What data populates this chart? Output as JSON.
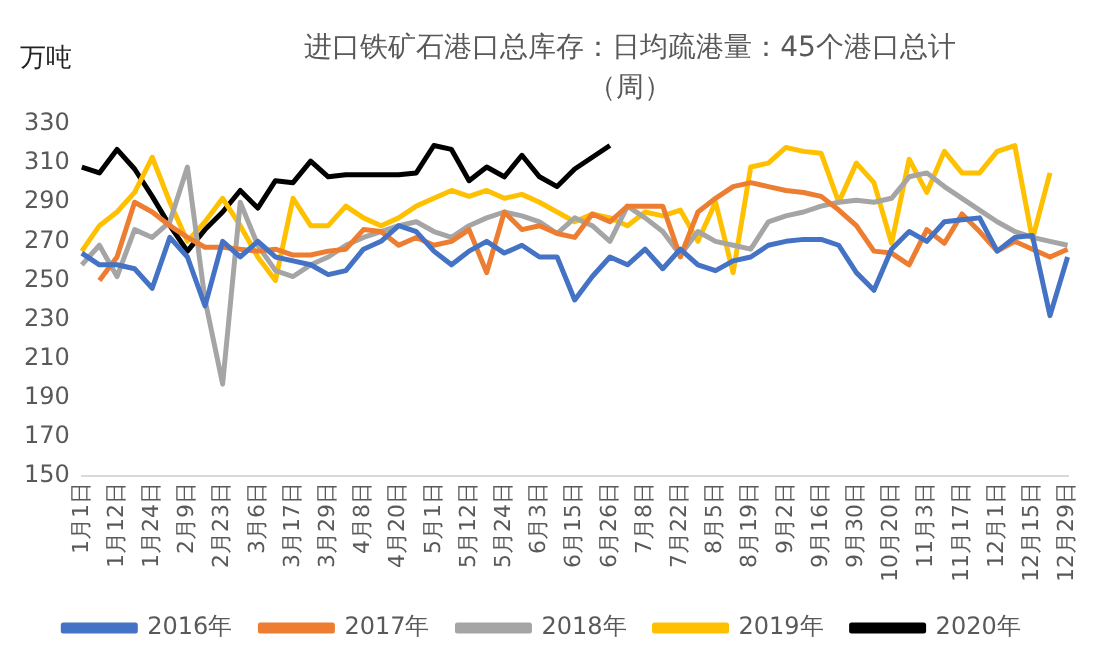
{
  "chart_data": {
    "type": "line",
    "title": "进口铁矿石港口总库存：日均疏港量：45个港口总计（周）",
    "ylabel": "万吨",
    "categories": [
      "1月1日",
      null,
      "1月12日",
      null,
      "1月24日",
      null,
      "2月9日",
      null,
      "2月23日",
      null,
      "3月6日",
      null,
      "3月17日",
      null,
      "3月29日",
      null,
      "4月8日",
      null,
      "4月20日",
      null,
      "5月1日",
      null,
      "5月12日",
      null,
      "5月24日",
      null,
      "6月3日",
      null,
      "6月15日",
      null,
      "6月26日",
      null,
      "7月8日",
      null,
      "7月22日",
      null,
      "8月5日",
      null,
      "8月19日",
      null,
      "9月2日",
      null,
      "9月16日",
      null,
      "9月30日",
      null,
      "10月20日",
      null,
      "11月3日",
      null,
      "11月17日",
      null,
      "12月1日",
      null,
      "12月15日",
      null,
      "12月29日"
    ],
    "ylim": [
      150,
      330
    ],
    "yticks": [
      150,
      170,
      190,
      210,
      230,
      250,
      270,
      290,
      310,
      330
    ],
    "grid": false,
    "legend": "bottom",
    "marker": "none",
    "line_style": "solid",
    "series": [
      {
        "name": "2016年",
        "color": "#4472c4",
        "values": [
          264,
          258,
          258,
          256,
          246,
          272,
          262,
          237,
          270,
          262,
          270,
          262,
          260,
          258,
          253,
          255,
          266,
          270,
          278,
          275,
          265,
          258,
          265,
          270,
          264,
          268,
          262,
          262,
          240,
          252,
          262,
          258,
          266,
          256,
          266,
          258,
          255,
          260,
          262,
          268,
          270,
          271,
          271,
          268,
          254,
          245,
          266,
          275,
          270,
          280,
          281,
          282,
          265,
          272,
          273,
          232,
          262
        ]
      },
      {
        "name": "2017年",
        "color": "#ed7d31",
        "values": [
          null,
          250,
          262,
          290,
          285,
          278,
          272,
          267,
          267,
          266,
          265,
          266,
          263,
          263,
          265,
          266,
          276,
          275,
          268,
          272,
          268,
          270,
          276,
          254,
          285,
          276,
          278,
          274,
          272,
          284,
          280,
          288,
          288,
          288,
          262,
          285,
          292,
          298,
          300,
          298,
          296,
          295,
          293,
          286,
          278,
          265,
          264,
          258,
          276,
          269,
          284,
          275,
          265,
          270,
          266,
          262,
          266
        ]
      },
      {
        "name": "2018年",
        "color": "#a5a5a5",
        "values": [
          258,
          268,
          252,
          276,
          272,
          280,
          308,
          240,
          197,
          290,
          268,
          255,
          252,
          258,
          262,
          268,
          272,
          275,
          278,
          280,
          275,
          272,
          278,
          282,
          285,
          283,
          280,
          274,
          282,
          278,
          270,
          288,
          282,
          275,
          263,
          275,
          270,
          268,
          266,
          280,
          283,
          285,
          288,
          290,
          291,
          290,
          292,
          303,
          305,
          298,
          292,
          286,
          280,
          275,
          272,
          270,
          268
        ]
      },
      {
        "name": "2019年",
        "color": "#ffc000",
        "values": [
          265,
          278,
          285,
          295,
          313,
          290,
          270,
          280,
          292,
          278,
          262,
          250,
          292,
          278,
          278,
          288,
          282,
          278,
          282,
          288,
          292,
          296,
          293,
          296,
          292,
          294,
          290,
          285,
          280,
          284,
          282,
          278,
          285,
          283,
          286,
          270,
          290,
          254,
          308,
          310,
          318,
          316,
          315,
          290,
          310,
          300,
          269,
          312,
          295,
          316,
          305,
          305,
          316,
          319,
          271,
          305,
          null
        ]
      },
      {
        "name": "2020年",
        "color": "#000000",
        "values": [
          308,
          305,
          317,
          307,
          293,
          278,
          265,
          276,
          285,
          296,
          287,
          301,
          300,
          311,
          303,
          304,
          304,
          304,
          304,
          305,
          319,
          317,
          301,
          308,
          303,
          314,
          303,
          298,
          307,
          313,
          319,
          null,
          null,
          null,
          null,
          null,
          null,
          null,
          null,
          null,
          null,
          null,
          null,
          null,
          null,
          null,
          null,
          null,
          null,
          null,
          null,
          null,
          null,
          null,
          null,
          null,
          null
        ]
      }
    ]
  }
}
